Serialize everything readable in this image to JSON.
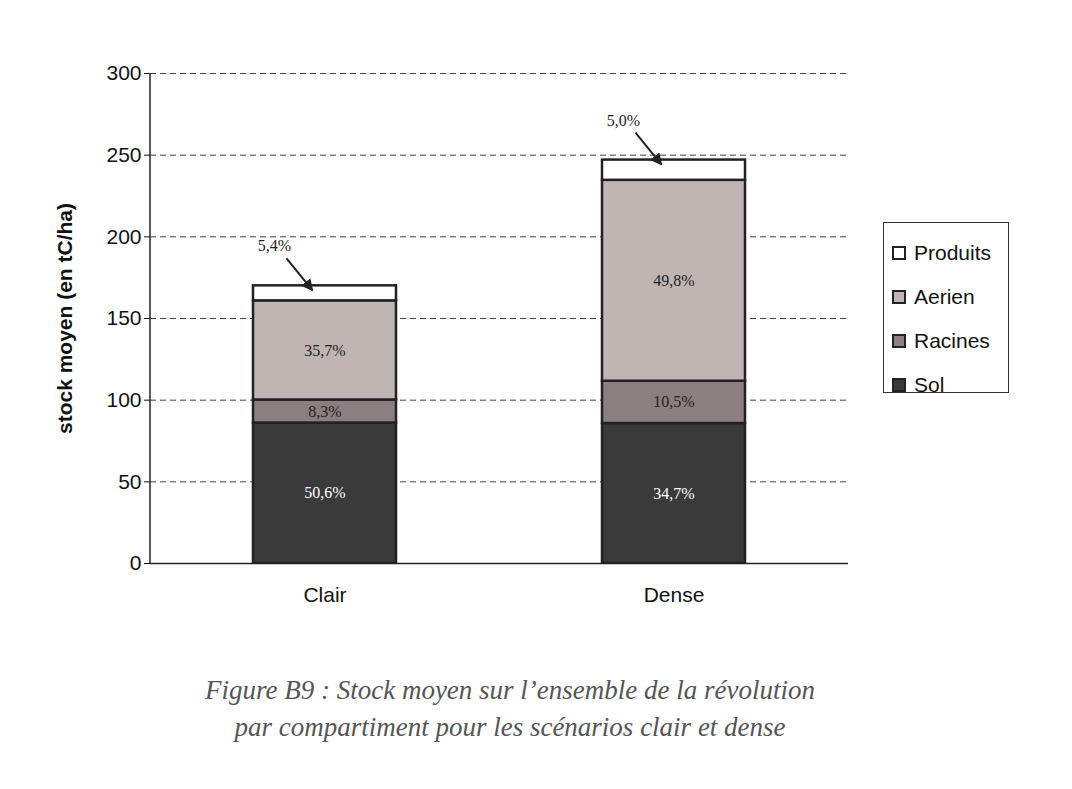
{
  "chart_data": {
    "type": "bar",
    "stacked": true,
    "caption": [
      "Figure B9 : Stock moyen sur l’ensemble de la révolution",
      "par compartiment pour les scénarios clair et dense"
    ],
    "y_label": "stock moyen (en tC/ha)",
    "categories": [
      "Clair",
      "Dense"
    ],
    "series": [
      {
        "name": "Sol",
        "color": "#3a3a3a",
        "values": [
          86.0,
          85.7
        ],
        "share_labels": [
          "50,6%",
          "34,7%"
        ]
      },
      {
        "name": "Racines",
        "color": "#8c7f7f",
        "values": [
          14.1,
          25.9
        ],
        "share_labels": [
          "8,3%",
          "10,5%"
        ]
      },
      {
        "name": "Aerien",
        "color": "#bfb5b3",
        "values": [
          60.7,
          123.0
        ],
        "share_labels": [
          "35,7%",
          "49,8%"
        ]
      },
      {
        "name": "Produits",
        "color": "#ffffff",
        "values": [
          9.2,
          12.4
        ],
        "share_labels": [
          "5,4%",
          "5,0%"
        ]
      }
    ],
    "ylim": [
      0,
      300
    ],
    "yticks": [
      0,
      50,
      100,
      150,
      200,
      250,
      300
    ],
    "grid": true,
    "legend": "right"
  }
}
